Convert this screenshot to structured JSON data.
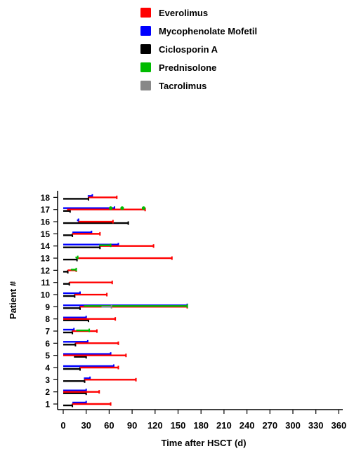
{
  "chart_data": {
    "type": "gantt",
    "xlabel": "Time after  HSCT (d)",
    "ylabel": "Patient #",
    "xlim": [
      0,
      365
    ],
    "ylim": [
      1,
      18
    ],
    "xticks": [
      0,
      30,
      60,
      90,
      120,
      150,
      180,
      210,
      240,
      270,
      300,
      330,
      360
    ],
    "yticks": [
      1,
      2,
      3,
      4,
      5,
      6,
      7,
      8,
      9,
      10,
      11,
      12,
      13,
      14,
      15,
      16,
      17,
      18
    ],
    "grid": false,
    "legend_position": "top",
    "legend": [
      {
        "name": "Everolimus",
        "color": "#ff0000"
      },
      {
        "name": "Mycophenolate Mofetil",
        "color": "#0000ff"
      },
      {
        "name": "Ciclosporin A",
        "color": "#000000"
      },
      {
        "name": "Prednisolone",
        "color": "#00bb00"
      },
      {
        "name": "Tacrolimus",
        "color": "#888888"
      }
    ],
    "series": [
      {
        "name": "Ciclosporin A",
        "color": "#000000",
        "segments": [
          {
            "patient": 1,
            "start": 0,
            "end": 12
          },
          {
            "patient": 2,
            "start": 0,
            "end": 30
          },
          {
            "patient": 3,
            "start": 0,
            "end": 28
          },
          {
            "patient": 4,
            "start": 0,
            "end": 22
          },
          {
            "patient": 5,
            "start": 14,
            "end": 30
          },
          {
            "patient": 6,
            "start": 0,
            "end": 16
          },
          {
            "patient": 7,
            "start": 0,
            "end": 12
          },
          {
            "patient": 8,
            "start": 0,
            "end": 33
          },
          {
            "patient": 9,
            "start": 0,
            "end": 22
          },
          {
            "patient": 10,
            "start": 0,
            "end": 15
          },
          {
            "patient": 11,
            "start": 0,
            "end": 8
          },
          {
            "patient": 12,
            "start": 0,
            "end": 6
          },
          {
            "patient": 13,
            "start": 0,
            "end": 18
          },
          {
            "patient": 14,
            "start": 0,
            "end": 48
          },
          {
            "patient": 15,
            "start": 0,
            "end": 12
          },
          {
            "patient": 16,
            "start": 0,
            "end": 85
          },
          {
            "patient": 17,
            "start": 0,
            "end": 9
          },
          {
            "patient": 18,
            "start": 0,
            "end": 33
          }
        ]
      },
      {
        "name": "Mycophenolate Mofetil",
        "color": "#0000ff",
        "segments": [
          {
            "patient": 1,
            "start": 12,
            "end": 30
          },
          {
            "patient": 2,
            "start": 0,
            "end": 30
          },
          {
            "patient": 3,
            "start": 27,
            "end": 35
          },
          {
            "patient": 4,
            "start": 0,
            "end": 66
          },
          {
            "patient": 5,
            "start": 0,
            "end": 62
          },
          {
            "patient": 6,
            "start": 0,
            "end": 32
          },
          {
            "patient": 7,
            "start": 0,
            "end": 14
          },
          {
            "patient": 8,
            "start": 0,
            "end": 30
          },
          {
            "patient": 9,
            "start": 0,
            "end": 162
          },
          {
            "patient": 10,
            "start": 0,
            "end": 22
          },
          {
            "patient": 14,
            "start": 0,
            "end": 72
          },
          {
            "patient": 15,
            "start": 12,
            "end": 37
          },
          {
            "patient": 16,
            "start": 18,
            "end": 20
          },
          {
            "patient": 17,
            "start": 0,
            "end": 67
          },
          {
            "patient": 18,
            "start": 32,
            "end": 38
          }
        ]
      },
      {
        "name": "Everolimus",
        "color": "#ff0000",
        "segments": [
          {
            "patient": 1,
            "start": 12,
            "end": 62
          },
          {
            "patient": 2,
            "start": 0,
            "end": 47
          },
          {
            "patient": 3,
            "start": 28,
            "end": 95
          },
          {
            "patient": 4,
            "start": 22,
            "end": 72
          },
          {
            "patient": 5,
            "start": 0,
            "end": 82
          },
          {
            "patient": 6,
            "start": 16,
            "end": 72
          },
          {
            "patient": 7,
            "start": 12,
            "end": 44
          },
          {
            "patient": 8,
            "start": 0,
            "end": 68
          },
          {
            "patient": 9,
            "start": 22,
            "end": 162
          },
          {
            "patient": 10,
            "start": 15,
            "end": 57
          },
          {
            "patient": 11,
            "start": 8,
            "end": 64
          },
          {
            "patient": 12,
            "start": 6,
            "end": 17
          },
          {
            "patient": 13,
            "start": 18,
            "end": 142
          },
          {
            "patient": 14,
            "start": 48,
            "end": 118
          },
          {
            "patient": 15,
            "start": 12,
            "end": 48
          },
          {
            "patient": 16,
            "start": 20,
            "end": 65
          },
          {
            "patient": 17,
            "start": 5,
            "end": 107
          },
          {
            "patient": 18,
            "start": 33,
            "end": 70
          }
        ]
      },
      {
        "name": "Prednisolone",
        "color": "#00bb00",
        "segments": [
          {
            "patient": 7,
            "start": 17,
            "end": 34
          },
          {
            "patient": 9,
            "start": 27,
            "end": 162
          },
          {
            "patient": 12,
            "start": 10,
            "end": 17
          },
          {
            "patient": 13,
            "start": 16,
            "end": 19
          },
          {
            "patient": 14,
            "start": 47,
            "end": 62
          }
        ],
        "points": [
          {
            "patient": 17,
            "x": 62
          },
          {
            "patient": 17,
            "x": 77
          },
          {
            "patient": 17,
            "x": 105
          }
        ]
      },
      {
        "name": "Tacrolimus",
        "color": "#888888",
        "segments": [
          {
            "patient": 9,
            "start": 50,
            "end": 63
          }
        ]
      }
    ]
  }
}
